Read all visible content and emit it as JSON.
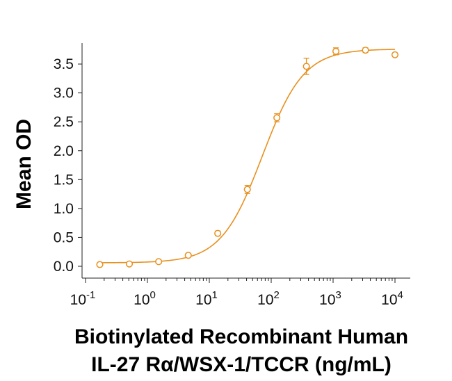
{
  "chart_data": {
    "type": "scatter",
    "x_scale": "log",
    "xlim": [
      0.1,
      10000
    ],
    "ylim": [
      0.0,
      3.85
    ],
    "grid": false,
    "ylabel": "Mean OD",
    "xlabel_lines": [
      "Biotinylated Recombinant Human",
      "IL-27 Rα/WSX-1/TCCR (ng/mL)"
    ],
    "y_ticks": [
      "0.0",
      "0.5",
      "1.0",
      "1.5",
      "2.0",
      "2.5",
      "3.0",
      "3.5"
    ],
    "x_ticks": [
      {
        "base": "10",
        "exp": "-1"
      },
      {
        "base": "10",
        "exp": "0"
      },
      {
        "base": "10",
        "exp": "1"
      },
      {
        "base": "10",
        "exp": "2"
      },
      {
        "base": "10",
        "exp": "3"
      },
      {
        "base": "10",
        "exp": "4"
      }
    ],
    "color": "#E8901E",
    "series": [
      {
        "x": [
          0.17,
          0.51,
          1.52,
          4.57,
          13.7,
          41.2,
          123.5,
          370.4,
          1111,
          3333,
          10000
        ],
        "y": [
          0.03,
          0.04,
          0.08,
          0.19,
          0.57,
          1.33,
          2.57,
          3.46,
          3.72,
          3.74,
          3.66
        ],
        "err": [
          0.02,
          0.02,
          0.02,
          0.03,
          0.04,
          0.07,
          0.07,
          0.14,
          0.06,
          0.04,
          0.03
        ]
      }
    ],
    "fit_curve": {
      "bottom": 0.06,
      "top": 3.76,
      "ec50": 72,
      "hill": 1.3
    }
  }
}
